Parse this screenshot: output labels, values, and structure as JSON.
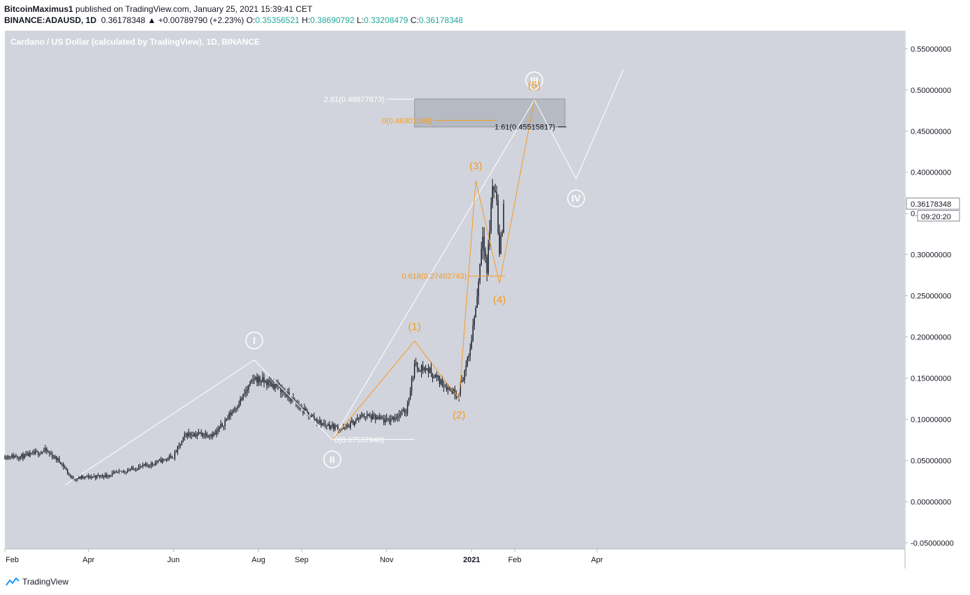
{
  "header": {
    "author": "BitcoinMaximus1",
    "published_text": "published on TradingView.com, January 25, 2021 15:39:41 CET",
    "symbol": "BINANCE:ADAUSD, 1D",
    "change": "0.36178348 ▲ +0.00789790 (+2.23%)",
    "o_label": "O:",
    "o": "0.35356521",
    "h_label": "H:",
    "h": "0.38690792",
    "l_label": "L:",
    "l": "0.33208479",
    "c_label": "C:",
    "c": "0.36178348"
  },
  "footer": {
    "brand": "TradingView"
  },
  "colors": {
    "bg": "#d1d4dc",
    "candle": "#131722",
    "orange": "#f59b23",
    "white": "#ffffff",
    "box": "#b2b5be"
  },
  "chart_data": {
    "type": "line",
    "title": "Cardano / US Dollar (calculated by TradingView), 1D, BINANCE",
    "price_unit": "USD",
    "y_ticks": [
      "0.55000000",
      "0.50000000",
      "0.45000000",
      "0.40000000",
      "0.35000000",
      "0.30000000",
      "0.25000000",
      "0.20000000",
      "0.15000000",
      "0.10000000",
      "0.05000000",
      "0.00000000",
      "-0.05000000"
    ],
    "ylim": [
      -0.05,
      0.55
    ],
    "x_ticks": [
      "Feb",
      "Apr",
      "Jun",
      "Aug",
      "Sep",
      "Nov",
      "2021",
      "Feb",
      "Apr"
    ],
    "last_price": "0.36178348",
    "countdown": "09:20:20",
    "price_series": {
      "x": [
        "2020-02-15",
        "2020-03-01",
        "2020-03-12",
        "2020-03-20",
        "2020-04-15",
        "2020-05-15",
        "2020-06-01",
        "2020-06-10",
        "2020-07-01",
        "2020-07-20",
        "2020-07-29",
        "2020-08-15",
        "2020-09-01",
        "2020-09-15",
        "2020-10-01",
        "2020-10-15",
        "2020-11-01",
        "2020-11-15",
        "2020-11-21",
        "2020-12-01",
        "2020-12-10",
        "2020-12-22",
        "2020-12-30",
        "2021-01-05",
        "2021-01-09",
        "2021-01-12",
        "2021-01-16",
        "2021-01-19",
        "2021-01-21",
        "2021-01-25"
      ],
      "y": [
        0.055,
        0.062,
        0.048,
        0.028,
        0.032,
        0.045,
        0.055,
        0.082,
        0.082,
        0.125,
        0.15,
        0.14,
        0.112,
        0.095,
        0.088,
        0.105,
        0.098,
        0.11,
        0.165,
        0.16,
        0.145,
        0.13,
        0.175,
        0.25,
        0.33,
        0.28,
        0.385,
        0.37,
        0.3,
        0.362
      ]
    },
    "white_wave": {
      "labels": [
        "I",
        "II",
        "III",
        "IV"
      ],
      "x": [
        "2020-03-15",
        "2020-07-29",
        "2020-09-23",
        "2021-02-15",
        "2021-03-17",
        "2021-04-20"
      ],
      "y": [
        0.02,
        0.172,
        0.075,
        0.488,
        0.392,
        0.525
      ]
    },
    "orange_wave": {
      "labels": [
        "(1)",
        "(2)",
        "(3)",
        "(4)",
        "(5)"
      ],
      "x": [
        "2020-09-23",
        "2020-11-21",
        "2020-12-23",
        "2021-01-04",
        "2021-01-21",
        "2021-02-15"
      ],
      "y": [
        0.075,
        0.195,
        0.125,
        0.39,
        0.265,
        0.488
      ]
    },
    "fib_levels": [
      {
        "label": "2.61(0.48877873)",
        "value": 0.48877873
      },
      {
        "label": "0(0.46301398)",
        "value": 0.46301398
      },
      {
        "label": "1.61(0.45515817)",
        "value": 0.45515817
      },
      {
        "label": "0.618(0.27402743)",
        "value": 0.27402743
      },
      {
        "label": "0(0.07537948)",
        "value": 0.07537948
      }
    ],
    "target_box": {
      "y": [
        0.455,
        0.489
      ],
      "x": [
        "2020-11-21",
        "2021-03-09"
      ]
    },
    "grid": false,
    "legend": "none"
  }
}
